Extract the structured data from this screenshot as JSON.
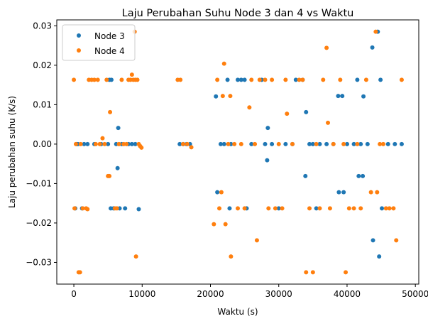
{
  "chart_data": {
    "type": "scatter",
    "title": "Laju Perubahan Suhu Node 3 dan 4 vs Waktu",
    "xlabel": "Waktu (s)",
    "ylabel": "Laju perubahan suhu (K/s)",
    "xlim": [
      -2500,
      50500
    ],
    "ylim": [
      -0.0355,
      0.0315
    ],
    "xticks": [
      0,
      10000,
      20000,
      30000,
      40000,
      50000
    ],
    "xtick_labels": [
      "0",
      "10000",
      "20000",
      "30000",
      "40000",
      "50000"
    ],
    "yticks": [
      -0.03,
      -0.02,
      -0.01,
      0.0,
      0.01,
      0.02,
      0.03
    ],
    "ytick_labels": [
      "−0.03",
      "−0.02",
      "−0.01",
      "0.00",
      "0.01",
      "0.02",
      "0.03"
    ],
    "grid": false,
    "legend_position": "top-left",
    "series": [
      {
        "name": "Node 3",
        "color": "#1f77b4",
        "points": [
          [
            200,
            -0.0163
          ],
          [
            400,
            0.0
          ],
          [
            600,
            0.0
          ],
          [
            1200,
            -0.0163
          ],
          [
            1500,
            0.0
          ],
          [
            2000,
            0.0
          ],
          [
            3000,
            0.0
          ],
          [
            4000,
            0.0
          ],
          [
            5000,
            0.0
          ],
          [
            5200,
            0.0163
          ],
          [
            5500,
            0.0163
          ],
          [
            5400,
            -0.0163
          ],
          [
            5800,
            -0.0163
          ],
          [
            6200,
            0.0
          ],
          [
            6500,
            0.0041
          ],
          [
            6400,
            -0.0061
          ],
          [
            6700,
            -0.0163
          ],
          [
            7000,
            0.0
          ],
          [
            7500,
            -0.0163
          ],
          [
            8000,
            0.0
          ],
          [
            8500,
            0.0
          ],
          [
            9000,
            0.0
          ],
          [
            9500,
            -0.0165
          ],
          [
            15500,
            0.0
          ],
          [
            16000,
            0.0
          ],
          [
            16500,
            0.0
          ],
          [
            17000,
            0.0
          ],
          [
            20800,
            0.0121
          ],
          [
            21000,
            -0.0122
          ],
          [
            21500,
            0.0
          ],
          [
            22000,
            0.0
          ],
          [
            22500,
            0.0163
          ],
          [
            22800,
            -0.0163
          ],
          [
            23000,
            0.0
          ],
          [
            24000,
            0.0163
          ],
          [
            24500,
            0.0163
          ],
          [
            25000,
            0.0163
          ],
          [
            25300,
            -0.0163
          ],
          [
            26000,
            0.0
          ],
          [
            27500,
            0.0163
          ],
          [
            28000,
            0.0
          ],
          [
            28300,
            -0.0041
          ],
          [
            28400,
            0.0041
          ],
          [
            29000,
            0.0
          ],
          [
            30000,
            -0.0163
          ],
          [
            31000,
            0.0
          ],
          [
            32000,
            0.0
          ],
          [
            32500,
            0.0163
          ],
          [
            33500,
            0.0163
          ],
          [
            34000,
            0.0081
          ],
          [
            33900,
            -0.0081
          ],
          [
            34500,
            0.0
          ],
          [
            35000,
            0.0
          ],
          [
            35500,
            -0.0163
          ],
          [
            36000,
            0.0
          ],
          [
            37000,
            0.0
          ],
          [
            38000,
            0.0
          ],
          [
            38700,
            0.0122
          ],
          [
            38800,
            -0.0122
          ],
          [
            39300,
            0.0122
          ],
          [
            39500,
            -0.0122
          ],
          [
            40000,
            0.0
          ],
          [
            41000,
            0.0
          ],
          [
            41500,
            0.0163
          ],
          [
            41700,
            -0.0081
          ],
          [
            42000,
            0.0
          ],
          [
            42300,
            -0.0081
          ],
          [
            42400,
            0.0121
          ],
          [
            43000,
            0.0
          ],
          [
            43700,
            0.0245
          ],
          [
            43800,
            -0.0244
          ],
          [
            44500,
            0.0285
          ],
          [
            44700,
            -0.0285
          ],
          [
            44900,
            0.0163
          ],
          [
            45100,
            -0.0163
          ],
          [
            46000,
            0.0
          ],
          [
            47000,
            0.0
          ],
          [
            48000,
            0.0
          ]
        ]
      },
      {
        "name": "Node 4",
        "color": "#ff7f0e",
        "points": [
          [
            0,
            0.0163
          ],
          [
            100,
            -0.0163
          ],
          [
            300,
            0.0
          ],
          [
            700,
            -0.0325
          ],
          [
            900,
            -0.0325
          ],
          [
            1000,
            0.0
          ],
          [
            1300,
            -0.0163
          ],
          [
            1800,
            -0.0163
          ],
          [
            2000,
            -0.0165
          ],
          [
            2200,
            0.0163
          ],
          [
            2600,
            0.0163
          ],
          [
            3000,
            0.0163
          ],
          [
            3200,
            0.0
          ],
          [
            3500,
            0.0163
          ],
          [
            3800,
            0.0
          ],
          [
            4200,
            0.0015
          ],
          [
            4500,
            0.0
          ],
          [
            4800,
            0.0163
          ],
          [
            5000,
            -0.0081
          ],
          [
            5200,
            -0.0081
          ],
          [
            5300,
            0.0081
          ],
          [
            6000,
            -0.0163
          ],
          [
            6300,
            -0.0163
          ],
          [
            6600,
            0.0
          ],
          [
            7000,
            0.0163
          ],
          [
            7300,
            0.0
          ],
          [
            7700,
            0.0
          ],
          [
            8000,
            0.0163
          ],
          [
            8300,
            0.0163
          ],
          [
            8500,
            0.0176
          ],
          [
            8700,
            0.0163
          ],
          [
            8900,
            0.0285
          ],
          [
            9000,
            0.0163
          ],
          [
            9100,
            -0.0285
          ],
          [
            9300,
            0.0163
          ],
          [
            9500,
            0.0
          ],
          [
            9700,
            -0.0005
          ],
          [
            9900,
            -0.0009
          ],
          [
            15200,
            0.0163
          ],
          [
            15600,
            0.0163
          ],
          [
            16000,
            0.0
          ],
          [
            16600,
            0.0
          ],
          [
            17200,
            -0.0008
          ],
          [
            20500,
            -0.0203
          ],
          [
            21000,
            0.0163
          ],
          [
            21300,
            -0.0163
          ],
          [
            21600,
            -0.0122
          ],
          [
            21800,
            0.0122
          ],
          [
            22000,
            0.0204
          ],
          [
            22200,
            -0.0203
          ],
          [
            22600,
            0.0
          ],
          [
            22900,
            0.0122
          ],
          [
            23000,
            -0.0285
          ],
          [
            23500,
            0.0
          ],
          [
            24000,
            -0.0163
          ],
          [
            24500,
            0.0
          ],
          [
            25000,
            -0.0163
          ],
          [
            25700,
            0.0093
          ],
          [
            26000,
            0.0163
          ],
          [
            26500,
            0.0
          ],
          [
            26800,
            -0.0244
          ],
          [
            27200,
            0.0163
          ],
          [
            28000,
            0.0163
          ],
          [
            28500,
            -0.0163
          ],
          [
            29000,
            0.0163
          ],
          [
            29500,
            -0.0163
          ],
          [
            30000,
            0.0
          ],
          [
            30500,
            -0.0163
          ],
          [
            31000,
            0.0163
          ],
          [
            31200,
            0.0077
          ],
          [
            32000,
            0.0
          ],
          [
            33000,
            0.0163
          ],
          [
            33500,
            0.0163
          ],
          [
            34000,
            -0.0325
          ],
          [
            34500,
            -0.0163
          ],
          [
            35000,
            -0.0325
          ],
          [
            35500,
            0.0
          ],
          [
            36000,
            -0.0163
          ],
          [
            36500,
            0.0163
          ],
          [
            37000,
            0.0244
          ],
          [
            37200,
            0.0054
          ],
          [
            37500,
            -0.0163
          ],
          [
            38000,
            0.0
          ],
          [
            39000,
            0.0163
          ],
          [
            39500,
            0.0
          ],
          [
            39800,
            -0.0325
          ],
          [
            40300,
            -0.0163
          ],
          [
            41000,
            -0.0163
          ],
          [
            41500,
            0.0
          ],
          [
            42000,
            -0.0163
          ],
          [
            42800,
            0.0163
          ],
          [
            43500,
            -0.0122
          ],
          [
            44200,
            0.0285
          ],
          [
            44400,
            -0.0122
          ],
          [
            44800,
            0.0
          ],
          [
            45300,
            0.0
          ],
          [
            45700,
            -0.0163
          ],
          [
            46200,
            -0.0163
          ],
          [
            46800,
            -0.0163
          ],
          [
            47200,
            -0.0244
          ],
          [
            48000,
            0.0163
          ]
        ]
      }
    ]
  }
}
